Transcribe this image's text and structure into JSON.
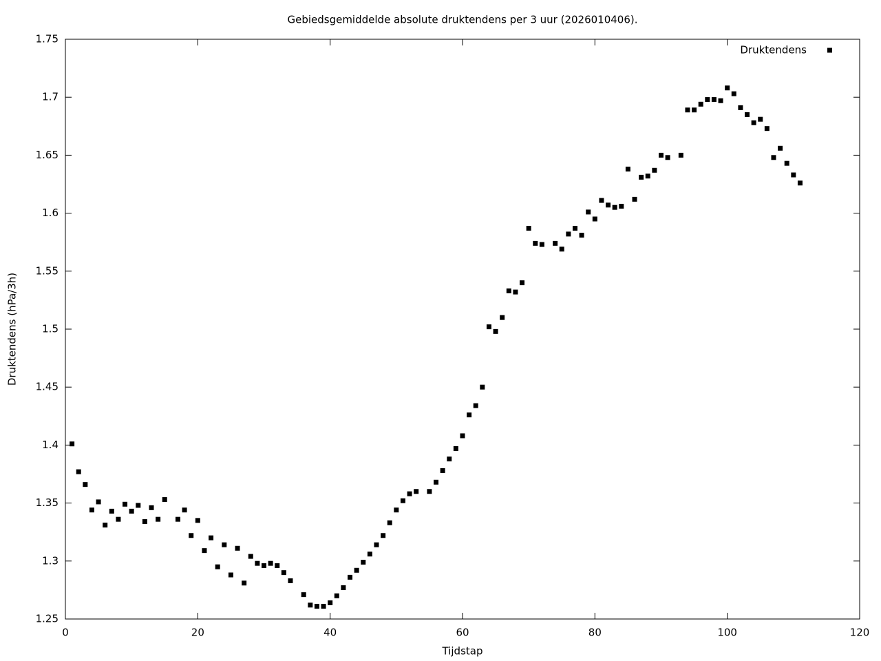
{
  "chart_data": {
    "type": "scatter",
    "title": "Gebiedsgemiddelde absolute druktendens per 3 uur (2026010406).",
    "xlabel": "Tijdstap",
    "ylabel": "Druktendens (hPa/3h)",
    "legend": "top-right",
    "series": [
      {
        "name": "Druktendens",
        "color": "#000000",
        "x": [
          1,
          2,
          3,
          4,
          5,
          6,
          7,
          8,
          9,
          10,
          11,
          12,
          13,
          14,
          15,
          17,
          18,
          19,
          20,
          21,
          22,
          23,
          24,
          25,
          26,
          27,
          28,
          29,
          30,
          31,
          32,
          33,
          34,
          36,
          37,
          38,
          39,
          40,
          41,
          42,
          43,
          44,
          45,
          46,
          47,
          48,
          49,
          50,
          51,
          52,
          53,
          55,
          56,
          57,
          58,
          59,
          60,
          61,
          62,
          63,
          64,
          65,
          66,
          67,
          68,
          69,
          70,
          71,
          72,
          74,
          75,
          76,
          77,
          78,
          79,
          80,
          81,
          82,
          83,
          84,
          85,
          86,
          87,
          88,
          89,
          90,
          91,
          93,
          94,
          95,
          96,
          97,
          98,
          99,
          100,
          101,
          102,
          103,
          104,
          105,
          106,
          107,
          108,
          109,
          110,
          111
        ],
        "values": [
          1.401,
          1.377,
          1.366,
          1.344,
          1.351,
          1.331,
          1.343,
          1.336,
          1.349,
          1.343,
          1.348,
          1.334,
          1.346,
          1.336,
          1.353,
          1.336,
          1.344,
          1.322,
          1.335,
          1.309,
          1.32,
          1.295,
          1.314,
          1.288,
          1.311,
          1.281,
          1.304,
          1.298,
          1.296,
          1.298,
          1.296,
          1.29,
          1.283,
          1.271,
          1.262,
          1.261,
          1.261,
          1.264,
          1.27,
          1.277,
          1.286,
          1.292,
          1.299,
          1.306,
          1.314,
          1.322,
          1.333,
          1.344,
          1.352,
          1.358,
          1.36,
          1.36,
          1.368,
          1.378,
          1.388,
          1.397,
          1.408,
          1.426,
          1.434,
          1.45,
          1.502,
          1.498,
          1.51,
          1.533,
          1.532,
          1.54,
          1.587,
          1.574,
          1.573,
          1.574,
          1.569,
          1.582,
          1.587,
          1.581,
          1.601,
          1.595,
          1.611,
          1.607,
          1.605,
          1.606,
          1.638,
          1.612,
          1.631,
          1.632,
          1.637,
          1.65,
          1.648,
          1.65,
          1.689,
          1.689,
          1.694,
          1.698,
          1.698,
          1.697,
          1.708,
          1.703,
          1.691,
          1.685,
          1.678,
          1.681,
          1.673,
          1.648,
          1.656,
          1.643,
          1.633,
          1.626
        ]
      }
    ],
    "xlim": [
      0,
      120
    ],
    "xticks": [
      0,
      20,
      40,
      60,
      80,
      100,
      120
    ],
    "ylim": [
      1.25,
      1.75
    ],
    "yticks": [
      1.25,
      1.3,
      1.35,
      1.4,
      1.45,
      1.5,
      1.55,
      1.6,
      1.65,
      1.7,
      1.75
    ]
  }
}
